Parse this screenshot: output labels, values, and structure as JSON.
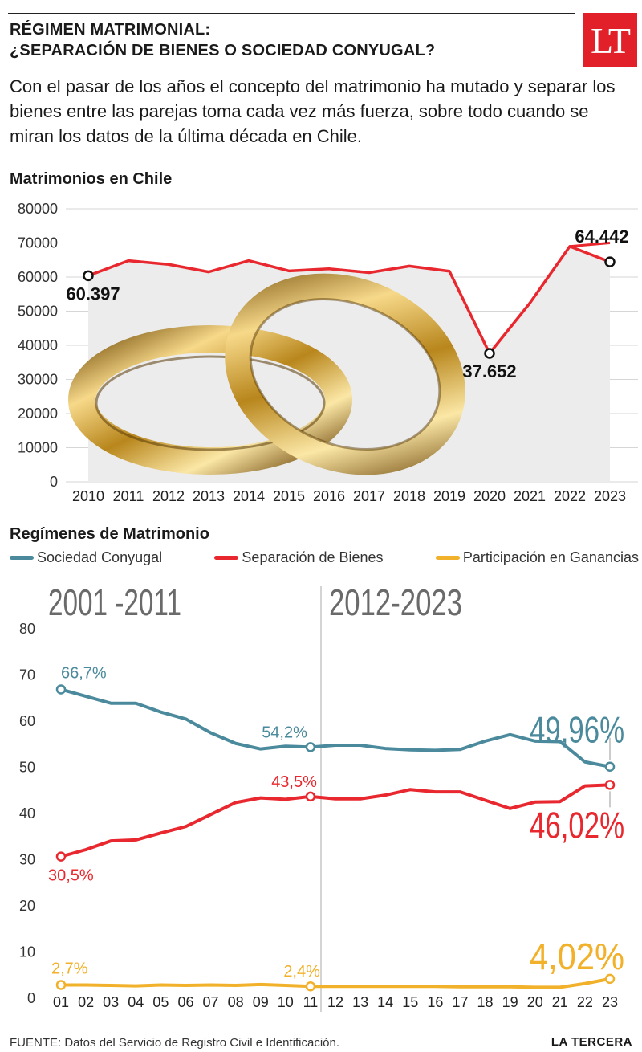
{
  "header": {
    "title_line1": "RÉGIMEN MATRIMONIAL:",
    "title_line2": "¿SEPARACIÓN DE BIENES O SOCIEDAD CONYUGAL?",
    "logo_text": "LT",
    "logo_color": "#e2202a",
    "intro": "Con el pasar de los años el concepto del matrimonio ha mutado y separar los bienes entre las parejas toma cada vez más fuerza, sobre todo cuando se miran los datos de la última década en Chile."
  },
  "chart_data": [
    {
      "type": "line",
      "title": "Matrimonios en Chile",
      "x": [
        "2010",
        "2011",
        "2012",
        "2013",
        "2014",
        "2015",
        "2016",
        "2017",
        "2018",
        "2019",
        "2020",
        "2021",
        "2022",
        "2023"
      ],
      "series": [
        {
          "values": [
            60397,
            64800,
            63700,
            61500,
            64800,
            61800,
            62400,
            61300,
            63200,
            61700,
            37652,
            52300,
            69000,
            64442
          ],
          "color": "#e8282e"
        }
      ],
      "extra_line": [
        69000,
        70000
      ],
      "yticks": [
        0,
        10000,
        20000,
        30000,
        40000,
        50000,
        60000,
        70000,
        80000
      ],
      "ylim": [
        0,
        80000
      ],
      "annotations": [
        {
          "x": "2010",
          "label": "60.397"
        },
        {
          "x": "2020",
          "label": "37.652"
        },
        {
          "x": "2023",
          "label": "64.442"
        }
      ],
      "illustration": "wedding-rings"
    },
    {
      "type": "line",
      "title": "Regímenes de Matrimonio",
      "x": [
        "01",
        "02",
        "03",
        "04",
        "05",
        "06",
        "07",
        "08",
        "09",
        "10",
        "11",
        "12",
        "13",
        "14",
        "15",
        "16",
        "17",
        "18",
        "19",
        "20",
        "21",
        "22",
        "23"
      ],
      "period_labels": [
        "2001 -2011",
        "2012-2023"
      ],
      "yticks": [
        0,
        10,
        20,
        30,
        40,
        50,
        60,
        70,
        80
      ],
      "ylim": [
        0,
        80
      ],
      "series": [
        {
          "name": "Sociedad Conyugal",
          "color": "#4a8a9c",
          "values": [
            66.7,
            65.2,
            63.7,
            63.7,
            61.8,
            60.3,
            57.3,
            55.0,
            53.8,
            54.4,
            54.2,
            54.6,
            54.6,
            53.9,
            53.6,
            53.5,
            53.7,
            55.5,
            56.9,
            55.5,
            55.4,
            51.0,
            49.96
          ],
          "labels": [
            {
              "x": "01",
              "text": "66,7%"
            },
            {
              "x": "11",
              "text": "54,2%"
            },
            {
              "x": "23",
              "text": "49,96%"
            }
          ]
        },
        {
          "name": "Separación de Bienes",
          "color": "#e8282e",
          "values": [
            30.5,
            32.0,
            33.9,
            34.1,
            35.6,
            37.0,
            39.6,
            42.2,
            43.2,
            42.9,
            43.5,
            43.0,
            43.0,
            43.8,
            45.0,
            44.5,
            44.5,
            42.7,
            40.9,
            42.3,
            42.4,
            45.8,
            46.02
          ],
          "labels": [
            {
              "x": "01",
              "text": "30,5%"
            },
            {
              "x": "11",
              "text": "43,5%"
            },
            {
              "x": "23",
              "text": "46,02%"
            }
          ]
        },
        {
          "name": "Participación en Ganancias",
          "color": "#f2b12a",
          "values": [
            2.7,
            2.7,
            2.6,
            2.5,
            2.7,
            2.6,
            2.7,
            2.6,
            2.8,
            2.6,
            2.4,
            2.4,
            2.4,
            2.4,
            2.4,
            2.4,
            2.3,
            2.3,
            2.3,
            2.2,
            2.2,
            3.0,
            4.02
          ],
          "labels": [
            {
              "x": "01",
              "text": "2,7%"
            },
            {
              "x": "11",
              "text": "2,4%"
            },
            {
              "x": "23",
              "text": "4,02%"
            }
          ]
        }
      ]
    }
  ],
  "legend": [
    {
      "label": "Sociedad Conyugal",
      "color": "#4a8a9c"
    },
    {
      "label": "Separación de Bienes",
      "color": "#e8282e"
    },
    {
      "label": "Participación en Ganancias",
      "color": "#f2b12a"
    }
  ],
  "footer": {
    "source_label": "FUENTE:",
    "source_text": "Datos del Servicio de Registro Civil e Identificación.",
    "brand": "LA TERCERA"
  }
}
